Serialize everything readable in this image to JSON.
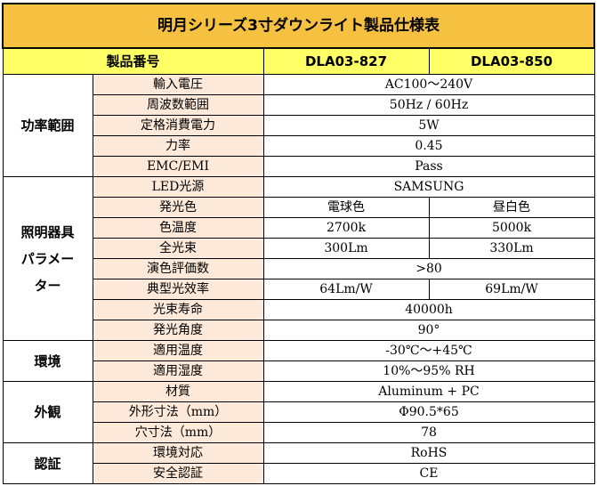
{
  "title": "明月シリーズ3寸ダウンライト製品仕様表",
  "header": {
    "label": "製品番号",
    "model_a": "DLA03-827",
    "model_b": "DLA03-850"
  },
  "sections": {
    "power": {
      "category": "功率範囲",
      "rows": [
        {
          "label": "輸入電圧",
          "value": "AC100～240V"
        },
        {
          "label": "周波数範囲",
          "value": "50Hz / 60Hz"
        },
        {
          "label": "定格消費電力",
          "value": "5W"
        },
        {
          "label": "力率",
          "value": "0.45"
        },
        {
          "label": "EMC/EMI",
          "value": "Pass"
        }
      ]
    },
    "lighting": {
      "category_lines": [
        "照明器具",
        "パラメー",
        "ター"
      ],
      "rows": [
        {
          "label": "LED光源",
          "value": "SAMSUNG"
        },
        {
          "label": "発光色",
          "value_a": "電球色",
          "value_b": "昼白色"
        },
        {
          "label": "色温度",
          "value_a": "2700k",
          "value_b": "5000k"
        },
        {
          "label": "全光束",
          "value_a": "300Lm",
          "value_b": "330Lm"
        },
        {
          "label": "演色評価数",
          "value": ">80"
        },
        {
          "label": "典型光效率",
          "value_a": "64Lm/W",
          "value_b": "69Lm/W"
        },
        {
          "label": "光束寿命",
          "value": "40000h"
        },
        {
          "label": "発光角度",
          "value": "90°"
        }
      ]
    },
    "environment": {
      "category": "環境",
      "rows": [
        {
          "label": "適用温度",
          "value": "-30℃～+45℃"
        },
        {
          "label": "適用湿度",
          "value": "10%～95% RH"
        }
      ]
    },
    "appearance": {
      "category": "外観",
      "rows": [
        {
          "label": "材質",
          "value": "Aluminum + PC"
        },
        {
          "label": "外形寸法（mm）",
          "value": "Φ90.5*65"
        },
        {
          "label": "穴寸法（mm）",
          "value": "78"
        }
      ]
    },
    "certification": {
      "category": "認証",
      "rows": [
        {
          "label": "環境対応",
          "value": "RoHS"
        },
        {
          "label": "安全認証",
          "value": "CE"
        }
      ]
    }
  }
}
